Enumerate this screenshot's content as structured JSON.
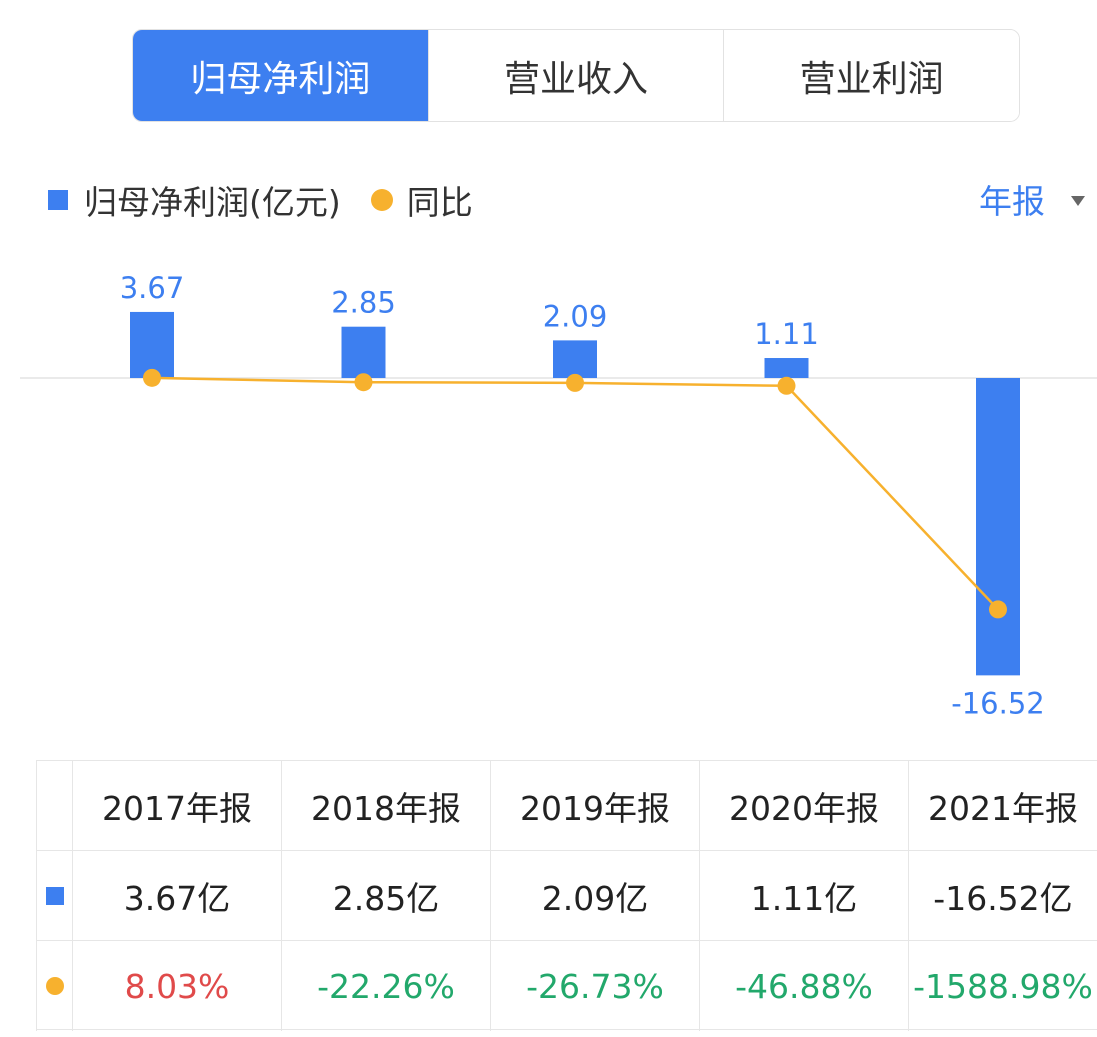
{
  "tabs": [
    {
      "label": "归母净利润",
      "active": true
    },
    {
      "label": "营业收入",
      "active": false
    },
    {
      "label": "营业利润",
      "active": false
    }
  ],
  "legend": {
    "bar_label": "归母净利润(亿元)",
    "line_label": "同比"
  },
  "period_selector": {
    "label": "年报"
  },
  "colors": {
    "bar": "#3d7ff0",
    "line": "#f7b12e",
    "positive": "#e04a4a",
    "negative": "#22a86b"
  },
  "chart_data": {
    "type": "bar",
    "categories": [
      "2017年报",
      "2018年报",
      "2019年报",
      "2020年报",
      "2021年报"
    ],
    "series": [
      {
        "name": "归母净利润(亿元)",
        "type": "bar",
        "values": [
          3.67,
          2.85,
          2.09,
          1.11,
          -16.52
        ]
      },
      {
        "name": "同比",
        "type": "line",
        "values": [
          8.03,
          -22.26,
          -26.73,
          -46.88,
          -1588.98
        ]
      }
    ],
    "data_labels": [
      "3.67",
      "2.85",
      "2.09",
      "1.11",
      "-16.52"
    ]
  },
  "table": {
    "headers": [
      "2017年报",
      "2018年报",
      "2019年报",
      "2020年报",
      "2021年报"
    ],
    "profit_row": [
      "3.67亿",
      "2.85亿",
      "2.09亿",
      "1.11亿",
      "-16.52亿"
    ],
    "yoy_row": [
      "8.03%",
      "-22.26%",
      "-26.73%",
      "-46.88%",
      "-1588.98%"
    ]
  }
}
